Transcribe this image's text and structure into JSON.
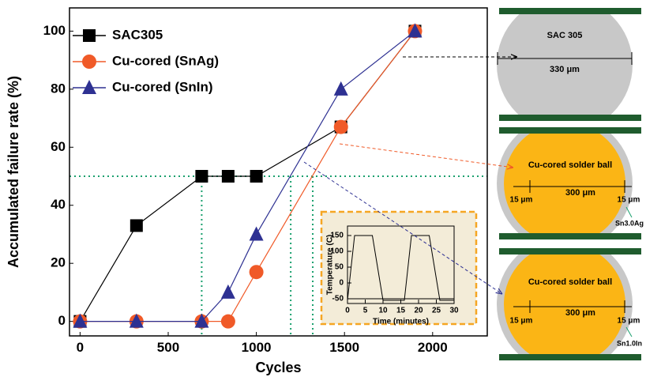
{
  "chart_data": [
    {
      "type": "line",
      "x_label": "Cycles",
      "y_label": "Accumulated failure rate (%)",
      "x": [
        0,
        320,
        690,
        840,
        1000,
        1480,
        1900
      ],
      "series": [
        {
          "name": "SAC305",
          "color": "#000000",
          "marker": "square",
          "values": [
            0,
            33,
            50,
            50,
            50,
            67,
            100
          ]
        },
        {
          "name": "Cu-cored (SnAg)",
          "color": "#f05a28",
          "marker": "circle",
          "values": [
            0,
            0,
            0,
            0,
            17,
            67,
            100
          ]
        },
        {
          "name": "Cu-cored (SnIn)",
          "color": "#2e3192",
          "marker": "triangle",
          "values": [
            0,
            0,
            0,
            10,
            30,
            80,
            100
          ]
        }
      ],
      "xlim": [
        -60,
        2310
      ],
      "ylim": [
        -5,
        108
      ],
      "xticks": [
        0,
        500,
        1000,
        1500,
        2000
      ],
      "yticks": [
        0,
        20,
        40,
        60,
        80,
        100
      ],
      "hlines": [
        50
      ],
      "vlines": [
        690,
        1195,
        1320
      ],
      "reference_color": "#1aa06e",
      "legend": "upper left"
    },
    {
      "type": "line",
      "x_label": "Time (minutes)",
      "y_label": "Temperature (C)",
      "x": [
        0,
        2,
        7,
        10,
        16,
        18,
        23,
        26,
        30
      ],
      "series": [
        {
          "color": "#000000",
          "values": [
            -55,
            150,
            150,
            -55,
            -55,
            150,
            150,
            -55,
            -55
          ]
        }
      ],
      "xlim": [
        0,
        30
      ],
      "ylim": [
        -65,
        180
      ],
      "xticks": [
        0,
        5,
        10,
        15,
        20,
        25,
        30
      ],
      "yticks": [
        -50,
        0,
        50,
        100,
        150
      ],
      "hlines": [
        -50
      ],
      "reference_color": "#000000"
    }
  ],
  "diagrams": [
    {
      "label": "SAC 305",
      "width": "330 μm"
    },
    {
      "label": "Cu-cored solder ball",
      "width": "300 μm",
      "shell_left": "15 μm",
      "shell_right": "15 μm",
      "alloy": "Sn3.0Ag"
    },
    {
      "label": "Cu-cored solder ball",
      "width": "300 μm",
      "shell_left": "15 μm",
      "shell_right": "15 μm",
      "alloy": "Sn1.0In"
    }
  ]
}
